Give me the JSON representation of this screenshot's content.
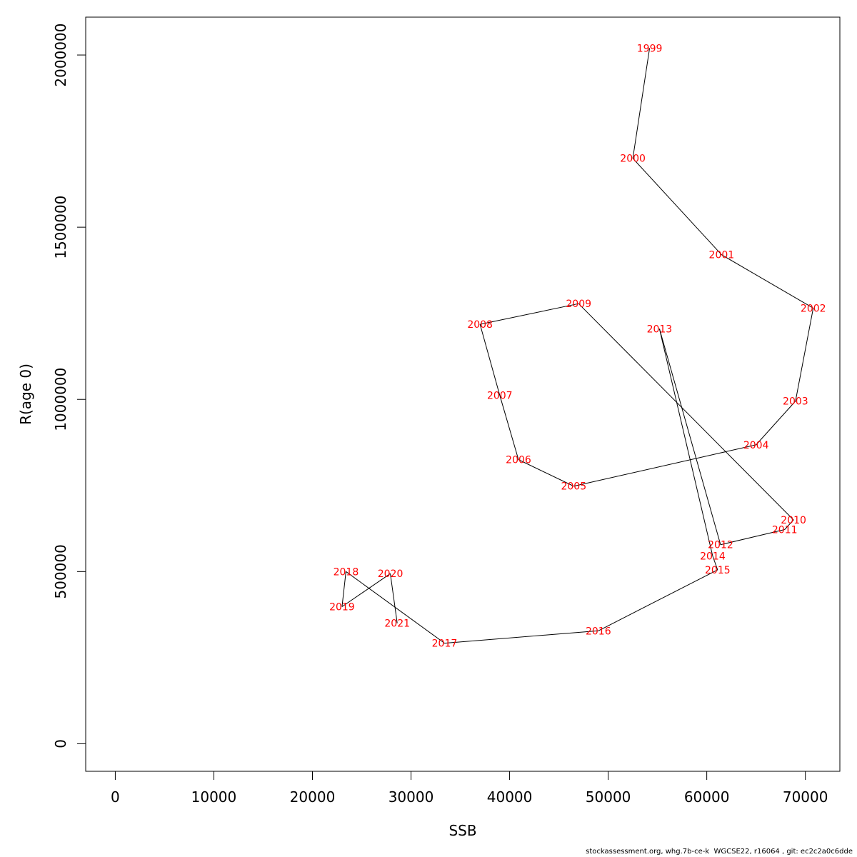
{
  "chart_data": {
    "type": "line",
    "xlabel": "SSB",
    "ylabel": "R(age 0)",
    "xlim": [
      -3000,
      73500
    ],
    "ylim": [
      -80000,
      2110000
    ],
    "x_ticks": [
      0,
      10000,
      20000,
      30000,
      40000,
      50000,
      60000,
      70000
    ],
    "x_tick_labels": [
      "0",
      "10000",
      "20000",
      "30000",
      "40000",
      "50000",
      "60000",
      "70000"
    ],
    "y_ticks": [
      0,
      500000,
      1000000,
      1500000,
      2000000
    ],
    "y_tick_labels": [
      "0",
      "500000",
      "1000000",
      "1500000",
      "2000000"
    ],
    "grid": false,
    "line_color": "#000000",
    "label_color": "#ff0000",
    "points": [
      {
        "year": "1999",
        "ssb": 54200,
        "r": 2020000
      },
      {
        "year": "2000",
        "ssb": 52500,
        "r": 1700000
      },
      {
        "year": "2001",
        "ssb": 61500,
        "r": 1420000
      },
      {
        "year": "2002",
        "ssb": 70800,
        "r": 1265000
      },
      {
        "year": "2003",
        "ssb": 69000,
        "r": 995000
      },
      {
        "year": "2004",
        "ssb": 65000,
        "r": 868000
      },
      {
        "year": "2005",
        "ssb": 46500,
        "r": 748000
      },
      {
        "year": "2006",
        "ssb": 40900,
        "r": 825000
      },
      {
        "year": "2007",
        "ssb": 39000,
        "r": 1012000
      },
      {
        "year": "2008",
        "ssb": 37000,
        "r": 1218000
      },
      {
        "year": "2009",
        "ssb": 47000,
        "r": 1278000
      },
      {
        "year": "2010",
        "ssb": 68800,
        "r": 650000
      },
      {
        "year": "2011",
        "ssb": 67900,
        "r": 622000
      },
      {
        "year": "2012",
        "ssb": 61400,
        "r": 578000
      },
      {
        "year": "2013",
        "ssb": 55200,
        "r": 1205000
      },
      {
        "year": "2014",
        "ssb": 60600,
        "r": 545000
      },
      {
        "year": "2015",
        "ssb": 61100,
        "r": 505000
      },
      {
        "year": "2016",
        "ssb": 49000,
        "r": 328000
      },
      {
        "year": "2017",
        "ssb": 33400,
        "r": 292000
      },
      {
        "year": "2018",
        "ssb": 23400,
        "r": 500000
      },
      {
        "year": "2019",
        "ssb": 23000,
        "r": 398000
      },
      {
        "year": "2020",
        "ssb": 27900,
        "r": 494000
      },
      {
        "year": "2021",
        "ssb": 28600,
        "r": 350000
      }
    ]
  },
  "footer": "stockassessment.org, whg.7b-ce-k  WGCSE22, r16064 , git: ec2c2a0c6dde"
}
